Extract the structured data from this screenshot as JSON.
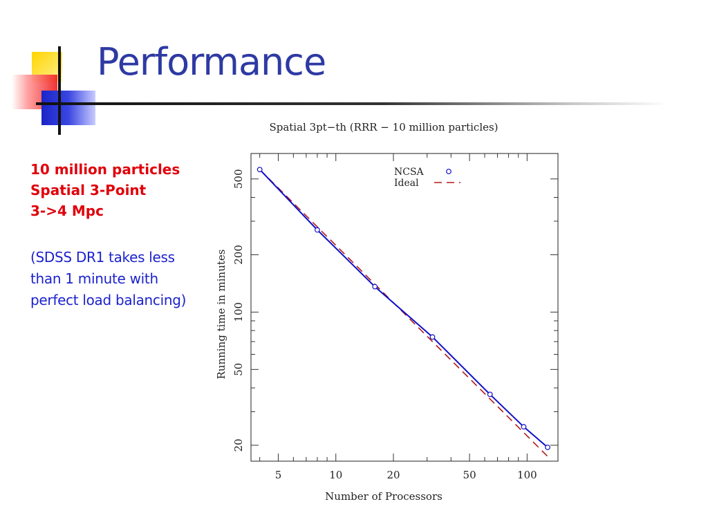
{
  "slide": {
    "title": "Performance",
    "bold_lines": [
      "10 million particles",
      "Spatial 3-Point",
      "3->4 Mpc"
    ],
    "note_lines": [
      "(SDSS DR1 takes less",
      "than 1 minute with",
      "perfect load balancing)"
    ]
  },
  "colors": {
    "title": "#2e3aa3",
    "bold_text": "#e0000a",
    "note_text": "#1c22cc",
    "ncsa": "#1010c8",
    "ideal": "#b01818"
  },
  "chart_data": {
    "type": "line",
    "title": "Spatial 3pt−th (RRR − 10 million particles)",
    "xlabel": "Number of Processors",
    "ylabel": "Running time in minutes",
    "xscale": "log",
    "yscale": "log",
    "xlim": [
      3.6,
      145
    ],
    "ylim": [
      16.5,
      680
    ],
    "xticks": [
      5,
      10,
      20,
      50,
      100
    ],
    "xtick_labels": [
      "5",
      "10",
      "20",
      "50",
      "100"
    ],
    "yticks": [
      20,
      50,
      100,
      200,
      500
    ],
    "ytick_labels": [
      "20",
      "50",
      "100",
      "200",
      "500"
    ],
    "grid": false,
    "legend": {
      "placement": "top-right",
      "entries": [
        "NCSA",
        "Ideal"
      ]
    },
    "series": [
      {
        "name": "NCSA",
        "style": "solid line with circle markers",
        "x": [
          4,
          8,
          16,
          32,
          64,
          96,
          128
        ],
        "y": [
          560,
          270,
          136,
          74,
          37,
          25,
          19.5
        ]
      },
      {
        "name": "Ideal",
        "style": "dashed line",
        "x": [
          4,
          128
        ],
        "y": [
          560,
          17.5
        ]
      }
    ]
  }
}
